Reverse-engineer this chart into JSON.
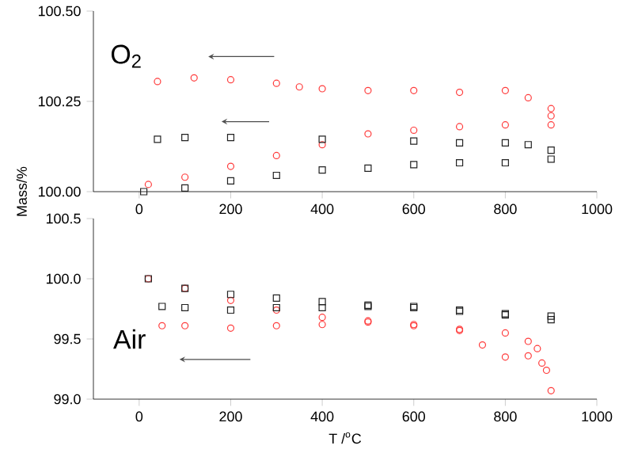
{
  "chart_data": [
    {
      "type": "scatter",
      "annotations": [
        "O$_{2}$"
      ],
      "ylabel": "Mass/%",
      "xlim": [
        -100,
        1000
      ],
      "xticks": [
        0,
        200,
        400,
        600,
        800,
        1000
      ],
      "ylim": [
        100.0,
        100.5
      ],
      "yticks": [
        {
          "value": 100.0,
          "label": "100.00"
        },
        100.25,
        {
          "value": 100.5,
          "label": "100.50"
        }
      ],
      "series": [
        {
          "color": "#ff3b3b",
          "marker": "circle",
          "x": [
            20,
            100,
            200,
            300,
            400,
            500,
            600,
            700,
            800,
            900,
            900,
            900,
            850,
            800,
            700,
            600,
            500,
            400,
            350,
            300,
            200,
            120,
            40
          ],
          "values": [
            100.02,
            100.04,
            100.07,
            100.1,
            100.13,
            100.16,
            100.17,
            100.18,
            100.185,
            100.185,
            100.21,
            100.23,
            100.26,
            100.28,
            100.275,
            100.28,
            100.28,
            100.285,
            100.29,
            100.3,
            100.31,
            100.315,
            100.305
          ]
        },
        {
          "color": "#222222",
          "marker": "square",
          "x": [
            10,
            100,
            200,
            300,
            400,
            500,
            600,
            700,
            800,
            900,
            900,
            850,
            800,
            700,
            600,
            400,
            200,
            100,
            40
          ],
          "values": [
            100.0,
            100.01,
            100.03,
            100.045,
            100.06,
            100.065,
            100.075,
            100.08,
            100.08,
            100.09,
            100.115,
            100.13,
            100.135,
            100.135,
            100.14,
            100.145,
            100.15,
            100.15,
            100.145
          ]
        }
      ]
    },
    {
      "type": "scatter",
      "annotations": [
        "Air"
      ],
      "xlabel": "T /$^{o}$C",
      "xlim": [
        -100,
        1000
      ],
      "xticks": [
        0,
        200,
        400,
        600,
        800,
        1000
      ],
      "ylim": [
        99.0,
        100.5
      ],
      "yticks": [
        {
          "value": 99.0,
          "label": "99.0"
        },
        99.5,
        {
          "value": 100.0,
          "label": "100.0"
        },
        100.5
      ],
      "series": [
        {
          "color": "#ff3b3b",
          "marker": "circle",
          "x": [
            20,
            100,
            200,
            300,
            400,
            500,
            600,
            700,
            800,
            850,
            870,
            890,
            900,
            880,
            850,
            800,
            750,
            700,
            600,
            500,
            400,
            300,
            200,
            100,
            50
          ],
          "values": [
            100.0,
            99.92,
            99.82,
            99.74,
            99.68,
            99.64,
            99.62,
            99.58,
            99.55,
            99.48,
            99.42,
            99.24,
            99.07,
            99.3,
            99.36,
            99.35,
            99.45,
            99.57,
            99.61,
            99.65,
            99.62,
            99.61,
            99.59,
            99.61,
            99.61
          ]
        },
        {
          "color": "#222222",
          "marker": "square",
          "x": [
            20,
            100,
            200,
            300,
            400,
            500,
            600,
            700,
            800,
            900,
            900,
            800,
            700,
            600,
            500,
            400,
            300,
            200,
            100,
            50
          ],
          "values": [
            100.0,
            99.92,
            99.87,
            99.84,
            99.81,
            99.78,
            99.77,
            99.74,
            99.7,
            99.66,
            99.69,
            99.71,
            99.73,
            99.76,
            99.77,
            99.76,
            99.76,
            99.74,
            99.76,
            99.77
          ]
        }
      ]
    }
  ]
}
